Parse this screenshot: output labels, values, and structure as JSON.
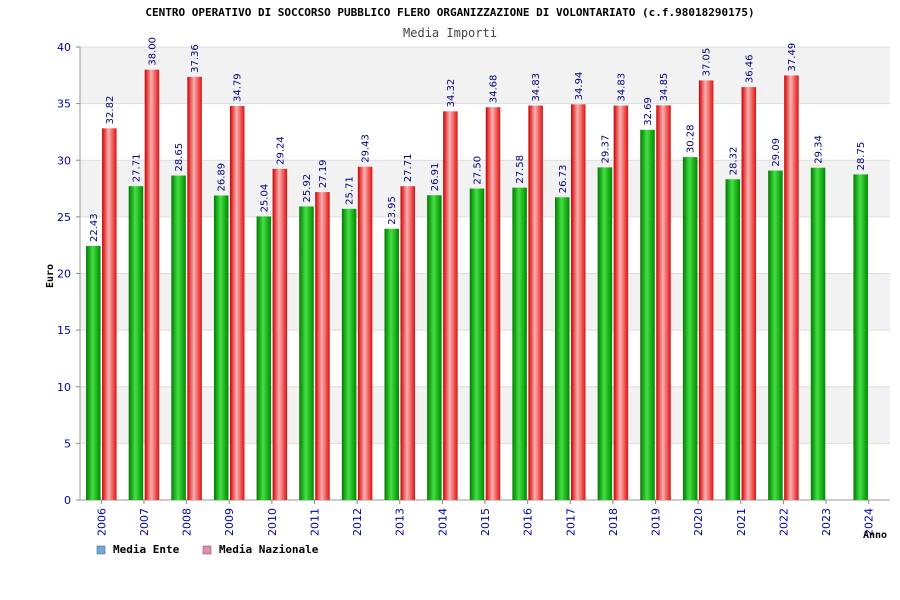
{
  "colors": {
    "ente_dark": "#007a00",
    "ente_light": "#33dd33",
    "nazionale_dark": "#cc0000",
    "nazionale_light": "#ff9090",
    "legend_ente": "#6fa8dc",
    "legend_nazionale": "#e58ab3",
    "band": "#f2f2f2",
    "tick_text": "#0000aa"
  },
  "chart_data": {
    "type": "bar",
    "title": "CENTRO OPERATIVO DI SOCCORSO PUBBLICO FLERO ORGANIZZAZIONE DI VOLONTARIATO (c.f.98018290175)",
    "subtitle": "Media Importi",
    "ylabel": "Euro",
    "xlabel": "Anno",
    "ylim": [
      0,
      40
    ],
    "yticks": [
      0,
      5,
      10,
      15,
      20,
      25,
      30,
      35,
      40
    ],
    "grid": true,
    "legend_position": "bottom-left",
    "categories": [
      "2006",
      "2007",
      "2008",
      "2009",
      "2010",
      "2011",
      "2012",
      "2013",
      "2014",
      "2015",
      "2016",
      "2017",
      "2018",
      "2019",
      "2020",
      "2021",
      "2022",
      "2023",
      "2024"
    ],
    "series": [
      {
        "name": "Media Ente",
        "values": [
          22.43,
          27.71,
          28.65,
          26.89,
          25.04,
          25.92,
          25.71,
          23.95,
          26.91,
          27.5,
          27.58,
          26.73,
          29.37,
          32.69,
          30.28,
          28.32,
          29.09,
          29.34,
          28.75
        ],
        "labels": [
          "22.43",
          "27.71",
          "28.65",
          "26.89",
          "25.04",
          "25.92",
          "25.71",
          "23.95",
          "26.91",
          "27.50",
          "27.58",
          "26.73",
          "29.37",
          "32.69",
          "30.28",
          "28.32",
          "29.09",
          "29.34",
          "28.75"
        ]
      },
      {
        "name": "Media Nazionale",
        "values": [
          32.82,
          38.0,
          37.36,
          34.79,
          29.24,
          27.19,
          29.43,
          27.71,
          34.32,
          34.68,
          34.83,
          34.94,
          34.83,
          34.85,
          37.05,
          36.46,
          37.49,
          null,
          null
        ],
        "labels": [
          "32.82",
          "38.00",
          "37.36",
          "34.79",
          "29.24",
          "27.19",
          "29.43",
          "27.71",
          "34.32",
          "34.68",
          "34.83",
          "34.94",
          "34.83",
          "34.85",
          "37.05",
          "36.46",
          "37.49",
          "",
          ""
        ]
      }
    ]
  }
}
